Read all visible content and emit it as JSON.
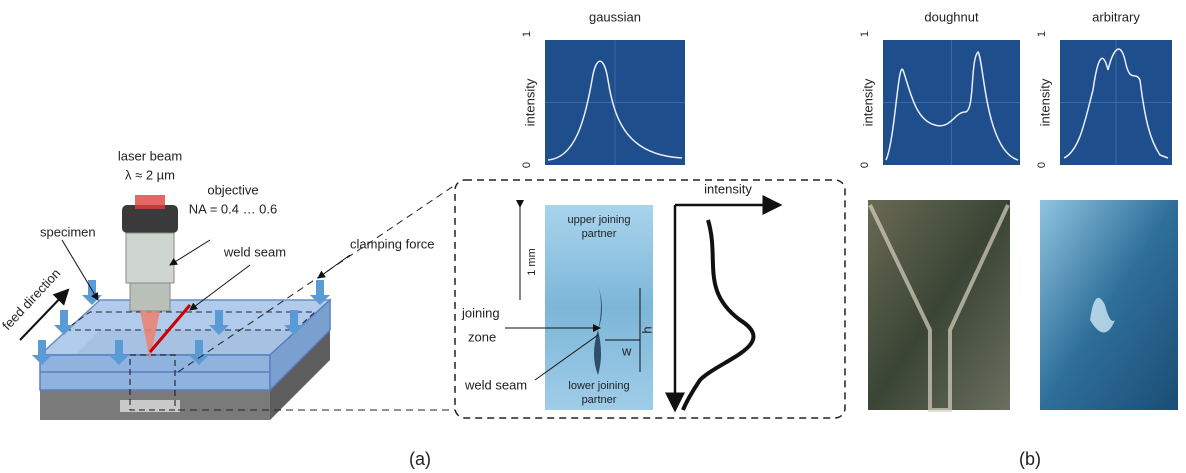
{
  "setup": {
    "laser_beam": "laser beam",
    "wavelength": "λ ≈ 2 µm",
    "objective": "objective",
    "numerical_aperture": "NA = 0.4 … 0.6",
    "specimen": "specimen",
    "weld_seam": "weld seam",
    "clamping_force": "clamping force",
    "feed_direction": "feed direction"
  },
  "cross_section": {
    "upper": [
      "upper joining",
      "partner"
    ],
    "scale": "1 mm",
    "joining_zone": [
      "joining",
      "zone"
    ],
    "weld_seam": "weld seam",
    "lower": [
      "lower joining",
      "partner"
    ],
    "width": "w",
    "height": "h",
    "intensity": "intensity"
  },
  "profiles": [
    {
      "title": "gaussian",
      "y_label": "intensity",
      "y_max": 1,
      "y_min": 0
    },
    {
      "title": "doughnut",
      "y_label": "intensity",
      "y_max": 1,
      "y_min": 0
    },
    {
      "title": "arbitrary",
      "y_label": "intensity",
      "y_max": 1,
      "y_min": 0
    }
  ],
  "panel_labels": [
    "(a)",
    "(b)"
  ]
}
